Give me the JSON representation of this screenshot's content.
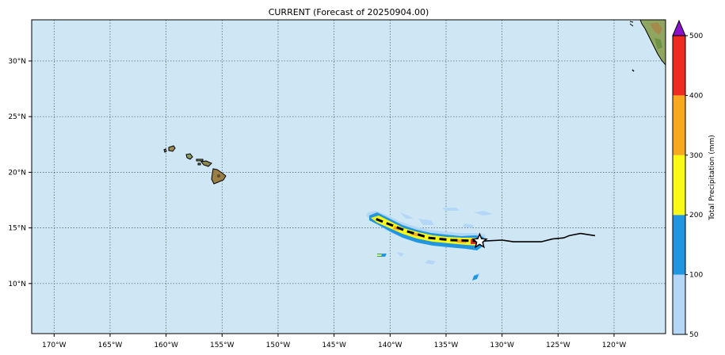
{
  "title": "CURRENT (Forecast of 20250904.00)",
  "map": {
    "ocean_color": "#cfe6f5",
    "lon_range": [
      -172,
      -115.4
    ],
    "lat_range": [
      5.5,
      33.7
    ],
    "grid_lons": [
      -170,
      -165,
      -160,
      -155,
      -150,
      -145,
      -140,
      -135,
      -130,
      -125,
      -120
    ],
    "grid_lats": [
      10,
      15,
      20,
      25,
      30
    ],
    "lon_labels": [
      "170°W",
      "165°W",
      "160°W",
      "155°W",
      "150°W",
      "145°W",
      "140°W",
      "135°W",
      "130°W",
      "125°W",
      "120°W"
    ],
    "lat_labels": [
      "10°N",
      "15°N",
      "20°N",
      "25°N",
      "30°N"
    ],
    "storm_position": {
      "lon": -132,
      "lat": 13.8,
      "icon": "star-icon"
    },
    "past_track": [
      [
        -132,
        13.8
      ],
      [
        -130,
        13.9
      ],
      [
        -129,
        13.75
      ],
      [
        -126.5,
        13.75
      ],
      [
        -125.5,
        14.0
      ],
      [
        -124.5,
        14.1
      ],
      [
        -124,
        14.3
      ],
      [
        -123,
        14.5
      ],
      [
        -121.7,
        14.3
      ]
    ],
    "forecast_track": [
      [
        -132,
        13.8
      ],
      [
        -133,
        13.85
      ],
      [
        -134.5,
        13.9
      ],
      [
        -136.5,
        14.1
      ],
      [
        -138.5,
        14.7
      ],
      [
        -140,
        15.3
      ],
      [
        -141.5,
        15.9
      ]
    ]
  },
  "colorbar": {
    "label": "Total Precipitation (mm)",
    "ticks": [
      "50",
      "100",
      "200",
      "300",
      "400",
      "500"
    ],
    "colors": [
      "#b4d7f7",
      "#2196e0",
      "#fafa14",
      "#f7a81e",
      "#ee2b1e"
    ],
    "extend_color": "#8a12c8"
  }
}
